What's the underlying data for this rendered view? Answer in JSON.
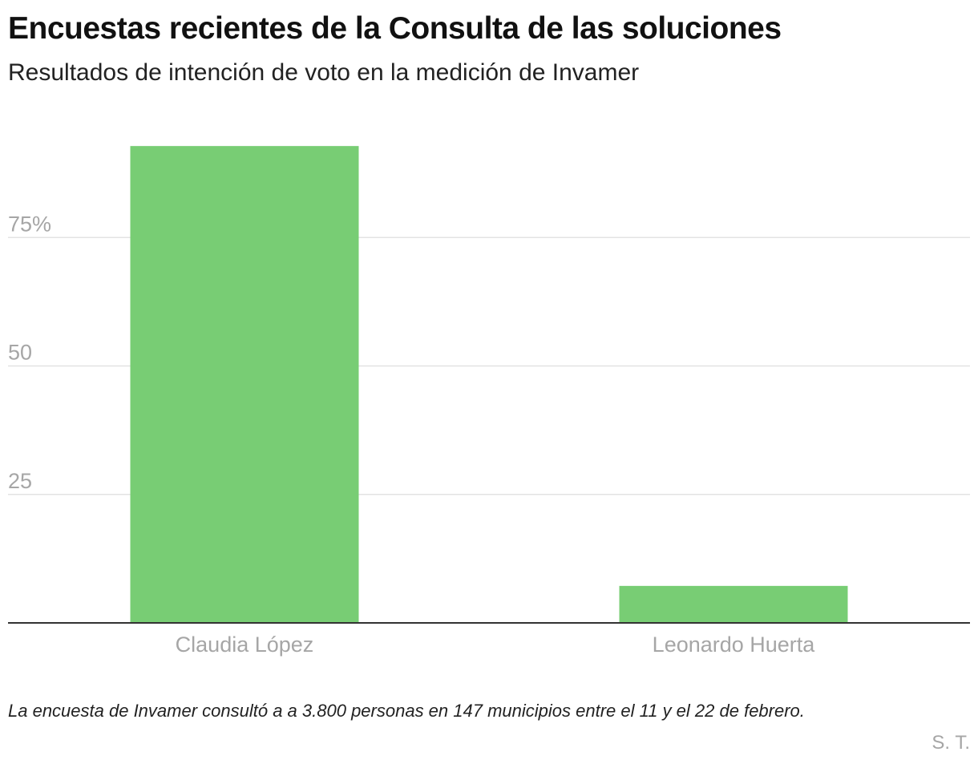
{
  "chart_data": {
    "type": "bar",
    "title": "Encuestas recientes de la Consulta de las soluciones",
    "subtitle": "Resultados de intención de voto en la medición de Invamer",
    "categories": [
      "Claudia López",
      "Leonardo Huerta"
    ],
    "values": [
      92.8,
      7.2
    ],
    "ylim": [
      0,
      100
    ],
    "yticks": [
      25,
      50,
      75
    ],
    "ytick_labels": [
      "25",
      "50",
      "75%"
    ],
    "xlabel": "",
    "ylabel": "",
    "grid": true,
    "bar_color": "#78cd74",
    "gridline_color": "#e3e3e3",
    "axis_color": "#333333",
    "tick_label_color": "#a6a6a6"
  },
  "note": "La encuesta de Invamer consultó a a 3.800 personas en 147 municipios entre el 11 y el 22 de febrero.",
  "credit": "S. T."
}
